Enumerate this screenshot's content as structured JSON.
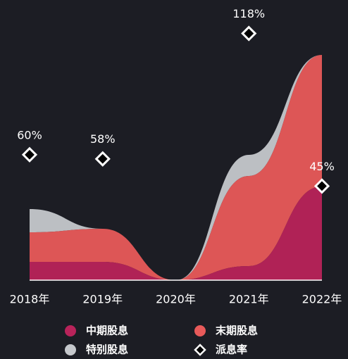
{
  "chart_data": {
    "type": "area",
    "categories": [
      "2018年",
      "2019年",
      "2020年",
      "2021年",
      "2022年"
    ],
    "series": [
      {
        "name": "中期股息",
        "color": "#b8235a",
        "values": [
          26,
          26,
          0,
          20,
          133
        ]
      },
      {
        "name": "末期股息",
        "color": "#e85a5a",
        "values": [
          42,
          47,
          0,
          128,
          187
        ]
      },
      {
        "name": "特别股息",
        "color": "#c5c8cc",
        "values": [
          33,
          0,
          0,
          30,
          0
        ]
      },
      {
        "name": "派息率",
        "color": "#ffffff",
        "values": [
          60,
          58,
          null,
          118,
          45
        ],
        "value_labels": [
          "60%",
          "58%",
          null,
          "118%",
          "45%"
        ]
      }
    ]
  }
}
